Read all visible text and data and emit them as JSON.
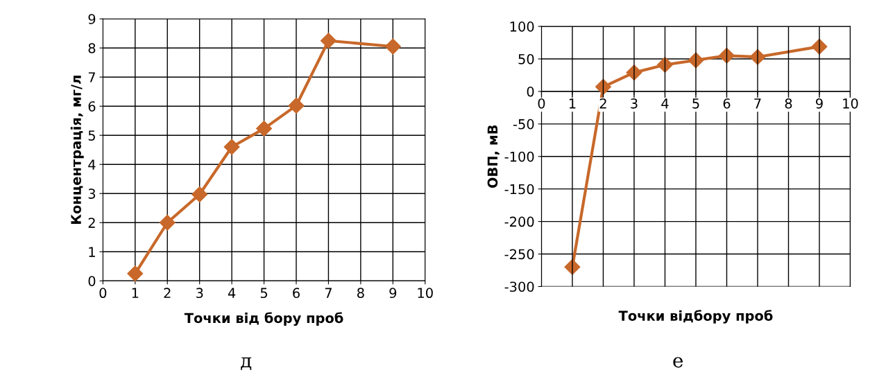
{
  "chart_data": [
    {
      "type": "line",
      "xlabel": "Точки від бору проб",
      "ylabel": "Концентрація, мг/л",
      "x": [
        1,
        2,
        3,
        4,
        5,
        6,
        7,
        9
      ],
      "series": [
        {
          "color": "#c8682a",
          "values": [
            0.25,
            2.0,
            2.97,
            4.6,
            5.23,
            6.02,
            8.25,
            8.05
          ]
        }
      ],
      "xlim": [
        0,
        10
      ],
      "xticks": [
        0,
        1,
        2,
        3,
        4,
        5,
        6,
        7,
        8,
        9,
        10
      ],
      "ylim": [
        0,
        9
      ],
      "yticks": [
        0,
        1,
        2,
        3,
        4,
        5,
        6,
        7,
        8,
        9
      ],
      "grid": true,
      "marker": "diamond",
      "line_style": "solid",
      "legend": false,
      "annotations": [
        "д"
      ]
    },
    {
      "type": "line",
      "xlabel": "Точки відбору проб",
      "ylabel": "ОВП, мВ",
      "x": [
        1,
        2,
        3,
        4,
        5,
        6,
        7,
        9
      ],
      "series": [
        {
          "color": "#c8682a",
          "values": [
            -270,
            7,
            29,
            41,
            48,
            55,
            53,
            69
          ]
        }
      ],
      "xlim": [
        0,
        10
      ],
      "xticks": [
        0,
        1,
        2,
        3,
        4,
        5,
        6,
        7,
        8,
        9,
        10
      ],
      "ylim": [
        -300,
        100
      ],
      "yticks": [
        -300,
        -250,
        -200,
        -150,
        -100,
        -50,
        0,
        50,
        100
      ],
      "grid": true,
      "marker": "diamond",
      "line_style": "solid",
      "legend": false,
      "annotations": [
        "е"
      ]
    }
  ]
}
